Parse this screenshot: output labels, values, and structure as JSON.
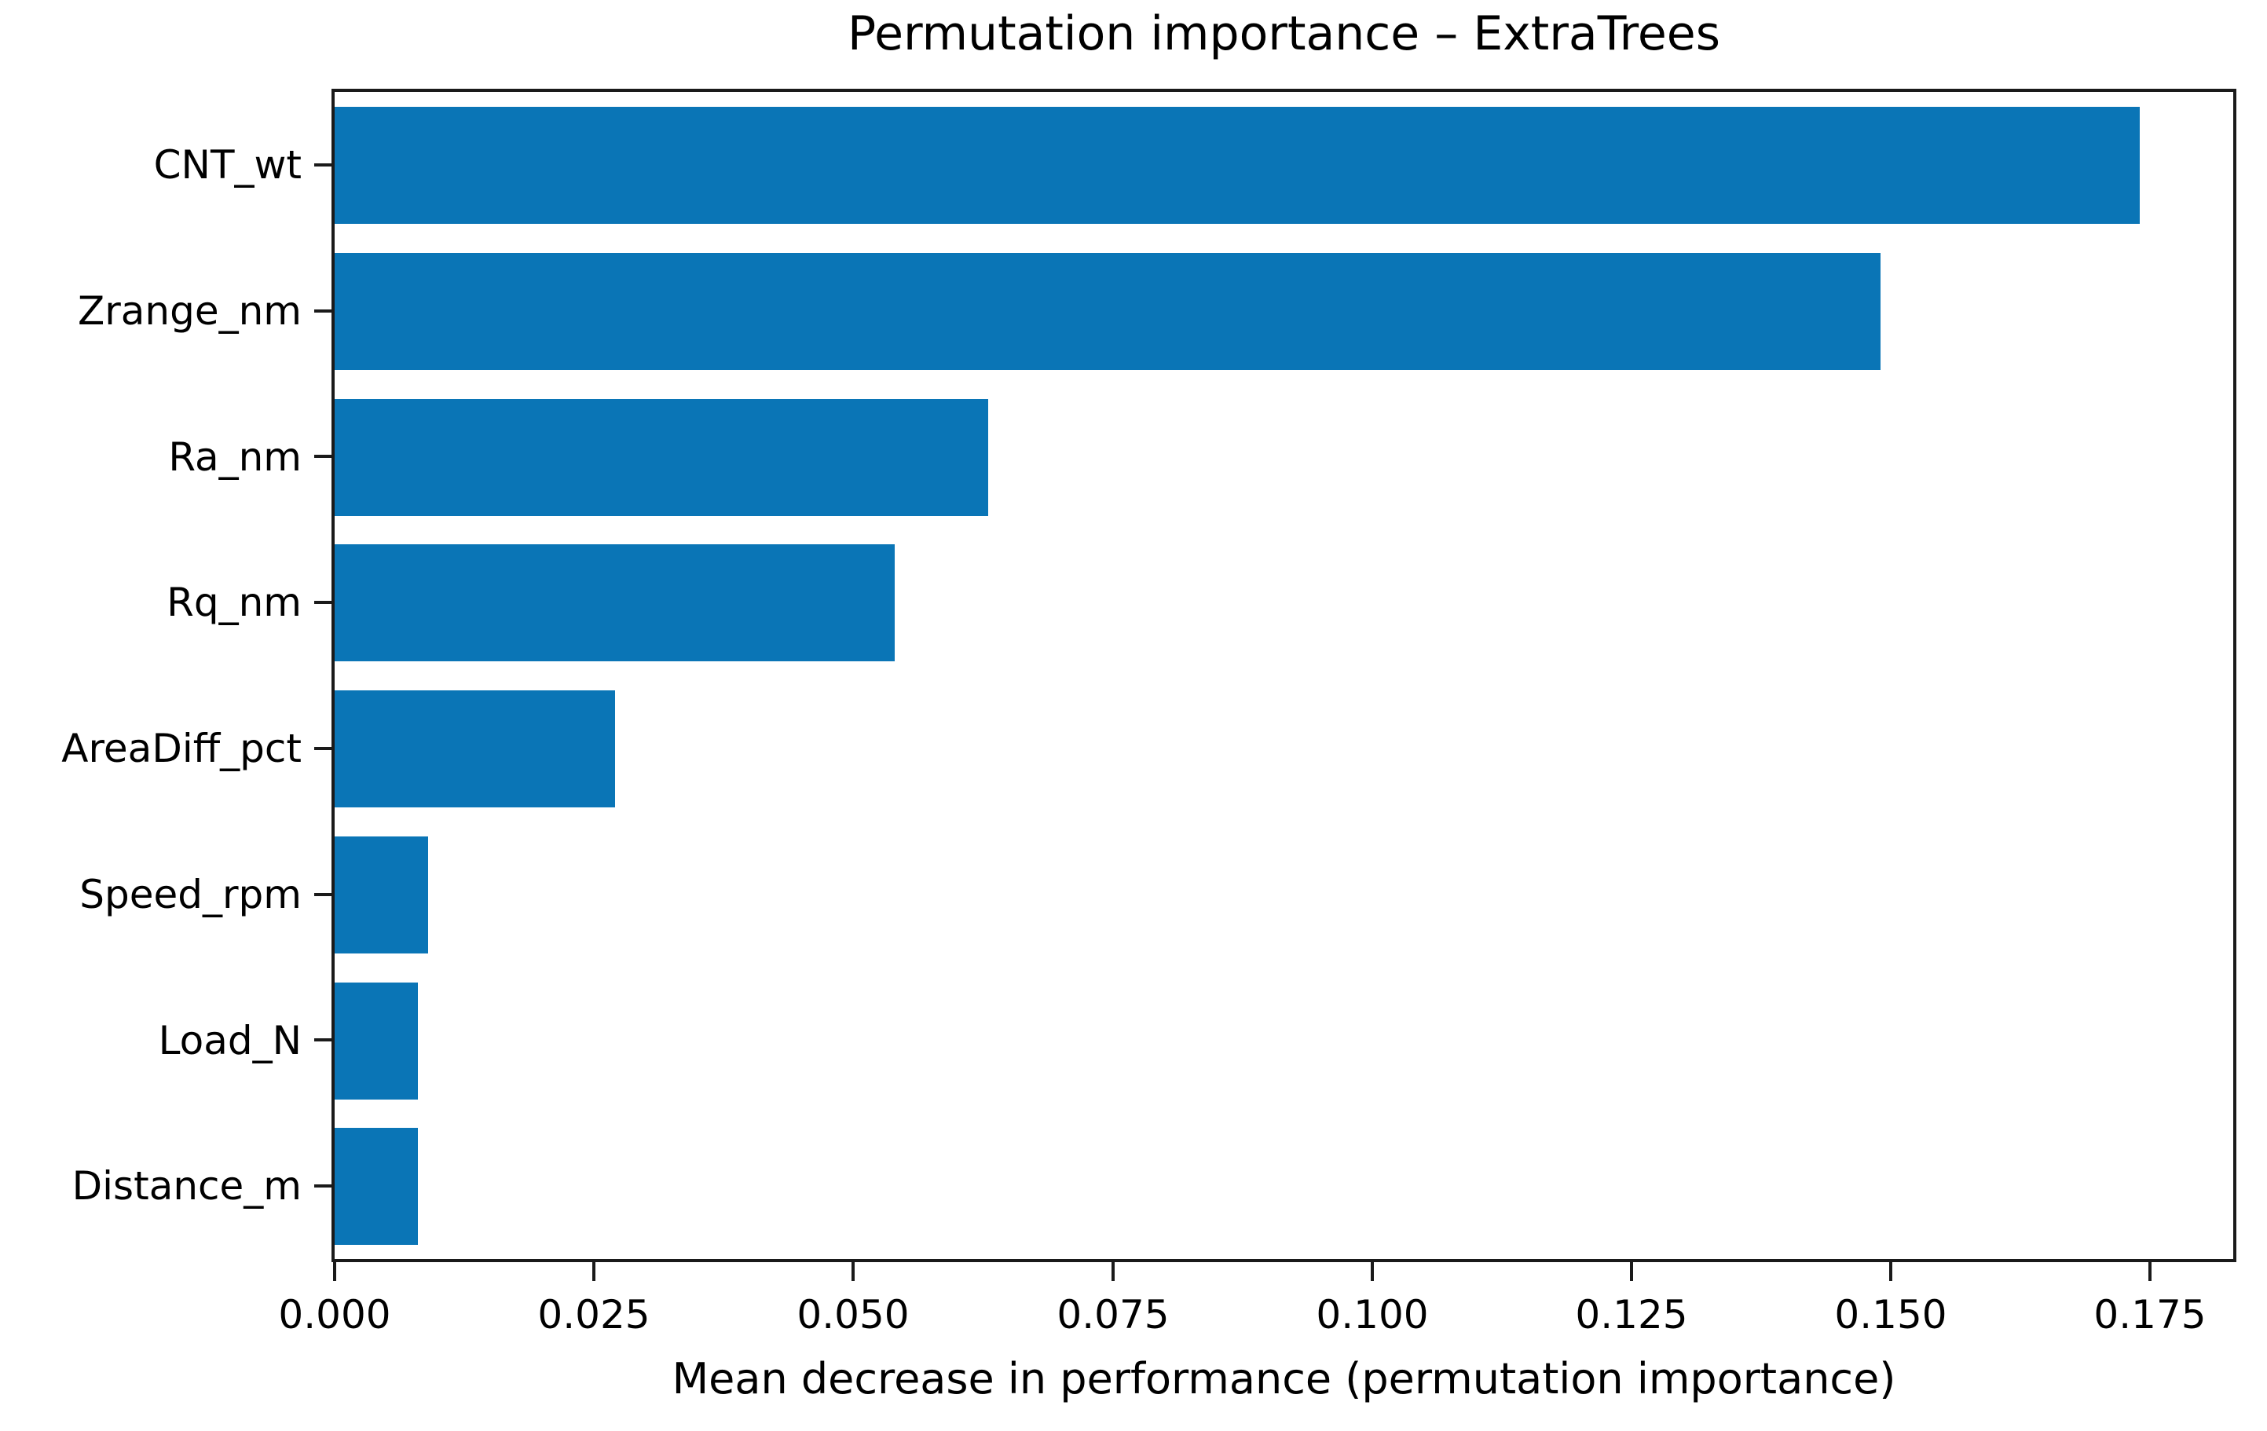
{
  "chart_data": {
    "type": "bar",
    "orientation": "horizontal",
    "title": "Permutation importance – ExtraTrees",
    "xlabel": "Mean decrease in performance (permutation importance)",
    "ylabel": "",
    "categories": [
      "CNT_wt",
      "Zrange_nm",
      "Ra_nm",
      "Rq_nm",
      "AreaDiff_pct",
      "Speed_rpm",
      "Load_N",
      "Distance_m"
    ],
    "values": [
      0.174,
      0.149,
      0.063,
      0.054,
      0.027,
      0.009,
      0.008,
      0.008
    ],
    "xlim": [
      0,
      0.183
    ],
    "x_ticks": [
      0.0,
      0.025,
      0.05,
      0.075,
      0.1,
      0.125,
      0.15,
      0.175
    ],
    "x_tick_labels": [
      "0.000",
      "0.025",
      "0.050",
      "0.075",
      "0.100",
      "0.125",
      "0.150",
      "0.175"
    ],
    "grid": false,
    "legend": "none",
    "bar_color": "#0a75b6",
    "spine_color": "#1a1a1a",
    "text_color": "#000000",
    "background_color": "#ffffff"
  }
}
